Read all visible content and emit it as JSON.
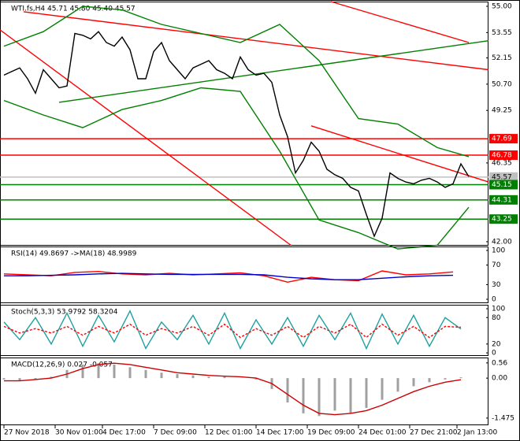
{
  "chart_data": [
    {
      "type": "line",
      "title": "WTI.fs,H4 45.71 45.80 45.40 45.57",
      "xlim": [
        -0.5,
        61.5
      ],
      "ylim": [
        41.78,
        55.26
      ],
      "yticks": [
        {
          "value": 55,
          "label": "55.00"
        },
        53.55,
        52.15,
        {
          "value": 50.7,
          "label": "50.70"
        },
        49.25,
        46.35,
        {
          "value": 42,
          "label": "42.00"
        }
      ],
      "levels": [
        {
          "value": 47.69,
          "color": "#ff0000"
        },
        {
          "value": 46.78,
          "color": "#ff0000"
        },
        {
          "value": 45.57,
          "color": "#c0c0c0"
        },
        {
          "value": 45.15,
          "color": "#008000"
        },
        {
          "value": 44.31,
          "color": "#008000"
        },
        {
          "value": 43.25,
          "color": "#008000"
        }
      ],
      "series": [
        {
          "color": "#ff0000",
          "x": [
            -0.5,
            36.5
          ],
          "values": [
            53.7,
            41.78
          ]
        },
        {
          "color": "#ff0000",
          "x": [
            2.5,
            61.5
          ],
          "values": [
            54.7,
            51.5
          ]
        },
        {
          "color": "#ff0000",
          "x": [
            41.5,
            59
          ],
          "values": [
            55.26,
            53.0
          ]
        },
        {
          "color": "#ff0000",
          "x": [
            39,
            61.5
          ],
          "values": [
            48.4,
            45.3
          ]
        },
        {
          "color": "#008000",
          "x": [
            7,
            61.5
          ],
          "values": [
            49.7,
            53.1
          ]
        },
        {
          "color": "#008000",
          "x": [
            0,
            5,
            10,
            15,
            20,
            25,
            30,
            35,
            40,
            45,
            50,
            55,
            59
          ],
          "values": [
            52.8,
            53.6,
            55.0,
            54.8,
            54.0,
            53.5,
            53.0,
            54.0,
            52.0,
            48.8,
            48.5,
            47.2,
            46.7
          ]
        },
        {
          "color": "#008000",
          "x": [
            0,
            5,
            10,
            15,
            20,
            25,
            30,
            35,
            40,
            45,
            50,
            55,
            59
          ],
          "values": [
            49.8,
            49.0,
            48.3,
            49.3,
            49.8,
            50.5,
            50.3,
            47.0,
            43.2,
            42.5,
            41.6,
            41.8,
            43.9
          ]
        },
        {
          "color": "#000000",
          "x": [
            0,
            1,
            2,
            3,
            4,
            5,
            6,
            7,
            8,
            9,
            10,
            11,
            12,
            13,
            14,
            15,
            16,
            17,
            18,
            19,
            20,
            21,
            22,
            23,
            24,
            25,
            26,
            27,
            28,
            29,
            30,
            31,
            32,
            33,
            34,
            35,
            36,
            37,
            38,
            39,
            40,
            41,
            42,
            43,
            44,
            45,
            46,
            47,
            48,
            49,
            50,
            51,
            52,
            53,
            54,
            55,
            56,
            57,
            58,
            59
          ],
          "values": [
            51.2,
            51.4,
            51.6,
            51.0,
            50.2,
            51.5,
            51.0,
            50.5,
            50.6,
            53.5,
            53.4,
            53.2,
            53.6,
            53.0,
            52.8,
            53.3,
            52.6,
            51.0,
            51.0,
            52.5,
            53.0,
            52.0,
            51.5,
            51.0,
            51.6,
            51.8,
            52.0,
            51.5,
            51.3,
            51.0,
            52.2,
            51.5,
            51.2,
            51.3,
            50.8,
            49.0,
            47.8,
            45.8,
            46.5,
            47.5,
            47.0,
            46.0,
            45.7,
            45.5,
            45.0,
            44.8,
            43.5,
            42.3,
            43.3,
            45.8,
            45.5,
            45.3,
            45.2,
            45.4,
            45.5,
            45.3,
            45.0,
            45.2,
            46.3,
            45.6
          ]
        }
      ]
    },
    {
      "type": "line",
      "title": "RSI(14) 49.8697 ->MA(18) 48.9989",
      "xlim": [
        -0.5,
        61.5
      ],
      "ylim": [
        -8,
        108
      ],
      "yticks": [
        100,
        70,
        30,
        0
      ],
      "series": [
        {
          "color": "#ff0000",
          "x": [
            0,
            3,
            6,
            9,
            12,
            15,
            18,
            21,
            24,
            27,
            30,
            33,
            36,
            39,
            42,
            45,
            48,
            51,
            54,
            57
          ],
          "values": [
            52,
            50,
            48,
            55,
            57,
            52,
            50,
            53,
            50,
            52,
            54,
            48,
            35,
            45,
            40,
            38,
            58,
            50,
            52,
            56
          ]
        },
        {
          "color": "#0000cc",
          "x": [
            0,
            3,
            6,
            9,
            12,
            15,
            18,
            21,
            24,
            27,
            30,
            33,
            36,
            39,
            42,
            45,
            48,
            51,
            54,
            57
          ],
          "values": [
            48,
            48,
            49,
            50,
            52,
            53,
            52,
            51,
            51,
            51,
            51,
            50,
            45,
            42,
            40,
            40,
            43,
            46,
            48,
            49
          ]
        }
      ]
    },
    {
      "type": "line",
      "title": "Stoch(5,3,3) 53.9792 58.3204",
      "xlim": [
        -0.5,
        61.5
      ],
      "ylim": [
        -7,
        109
      ],
      "yticks": [
        100,
        80,
        20,
        0
      ],
      "series": [
        {
          "color": "#20a0a0",
          "x": [
            0,
            2,
            4,
            6,
            8,
            10,
            12,
            14,
            16,
            18,
            20,
            22,
            24,
            26,
            28,
            30,
            32,
            34,
            36,
            38,
            40,
            42,
            44,
            46,
            48,
            50,
            52,
            54,
            56,
            58
          ],
          "values": [
            70,
            30,
            80,
            20,
            90,
            15,
            85,
            25,
            95,
            10,
            70,
            30,
            85,
            20,
            90,
            10,
            75,
            20,
            80,
            15,
            85,
            30,
            90,
            10,
            88,
            20,
            85,
            15,
            80,
            54
          ]
        },
        {
          "color": "#ff0000",
          "dashed": true,
          "x": [
            0,
            2,
            4,
            6,
            8,
            10,
            12,
            14,
            16,
            18,
            20,
            22,
            24,
            26,
            28,
            30,
            32,
            34,
            36,
            38,
            40,
            42,
            44,
            46,
            48,
            50,
            52,
            54,
            56,
            58
          ],
          "values": [
            60,
            45,
            55,
            45,
            60,
            40,
            60,
            45,
            65,
            40,
            55,
            45,
            60,
            40,
            65,
            35,
            55,
            40,
            60,
            35,
            60,
            45,
            65,
            35,
            65,
            40,
            60,
            35,
            60,
            58
          ]
        }
      ]
    },
    {
      "type": "line",
      "title": "MACD(12,26,9) 0.027 -0.057",
      "xlim": [
        -0.5,
        61.5
      ],
      "ylim": [
        -1.74,
        0.76
      ],
      "yticks": [
        0.56,
        {
          "value": 0,
          "label": "0.00"
        },
        -1.475
      ],
      "xticks": [
        {
          "value": 0,
          "label": "27 Nov 2018"
        },
        {
          "value": 6.5,
          "label": "30 Nov 01:00"
        },
        {
          "value": 12.5,
          "label": "4 Dec 17:00"
        },
        {
          "value": 19,
          "label": "7 Dec 09:00"
        },
        {
          "value": 25.5,
          "label": "12 Dec 01:00"
        },
        {
          "value": 32,
          "label": "14 Dec 17:00"
        },
        {
          "value": 38.5,
          "label": "19 Dec 09:00"
        },
        {
          "value": 45,
          "label": "24 Dec 01:00"
        },
        {
          "value": 51.5,
          "label": "27 Dec 21:00"
        },
        {
          "value": 57.5,
          "label": "2 Jan 13:00"
        }
      ],
      "series": [
        {
          "type": "bar",
          "color": "#a0a0a0",
          "x": [
            0,
            2,
            4,
            6,
            8,
            10,
            12,
            14,
            16,
            18,
            20,
            22,
            24,
            26,
            28,
            30,
            32,
            34,
            36,
            38,
            40,
            42,
            44,
            46,
            48,
            50,
            52,
            54,
            56,
            58
          ],
          "values": [
            -0.05,
            -0.1,
            -0.05,
            0.05,
            0.3,
            0.5,
            0.55,
            0.5,
            0.4,
            0.3,
            0.2,
            0.15,
            0.1,
            0.05,
            0.05,
            0.0,
            -0.05,
            -0.4,
            -0.9,
            -1.3,
            -1.4,
            -1.2,
            -1.3,
            -1.1,
            -0.8,
            -0.5,
            -0.3,
            -0.15,
            -0.05,
            0.03
          ]
        },
        {
          "color": "#cc0000",
          "x": [
            0,
            2,
            4,
            6,
            8,
            10,
            12,
            14,
            16,
            18,
            20,
            22,
            24,
            26,
            28,
            30,
            32,
            34,
            36,
            38,
            40,
            42,
            44,
            46,
            48,
            50,
            52,
            54,
            56,
            58
          ],
          "values": [
            -0.1,
            -0.1,
            -0.05,
            0.0,
            0.15,
            0.35,
            0.5,
            0.55,
            0.5,
            0.4,
            0.3,
            0.2,
            0.15,
            0.1,
            0.07,
            0.05,
            0.0,
            -0.2,
            -0.6,
            -1.0,
            -1.3,
            -1.35,
            -1.3,
            -1.2,
            -1.0,
            -0.75,
            -0.5,
            -0.3,
            -0.15,
            -0.06
          ]
        }
      ]
    }
  ]
}
